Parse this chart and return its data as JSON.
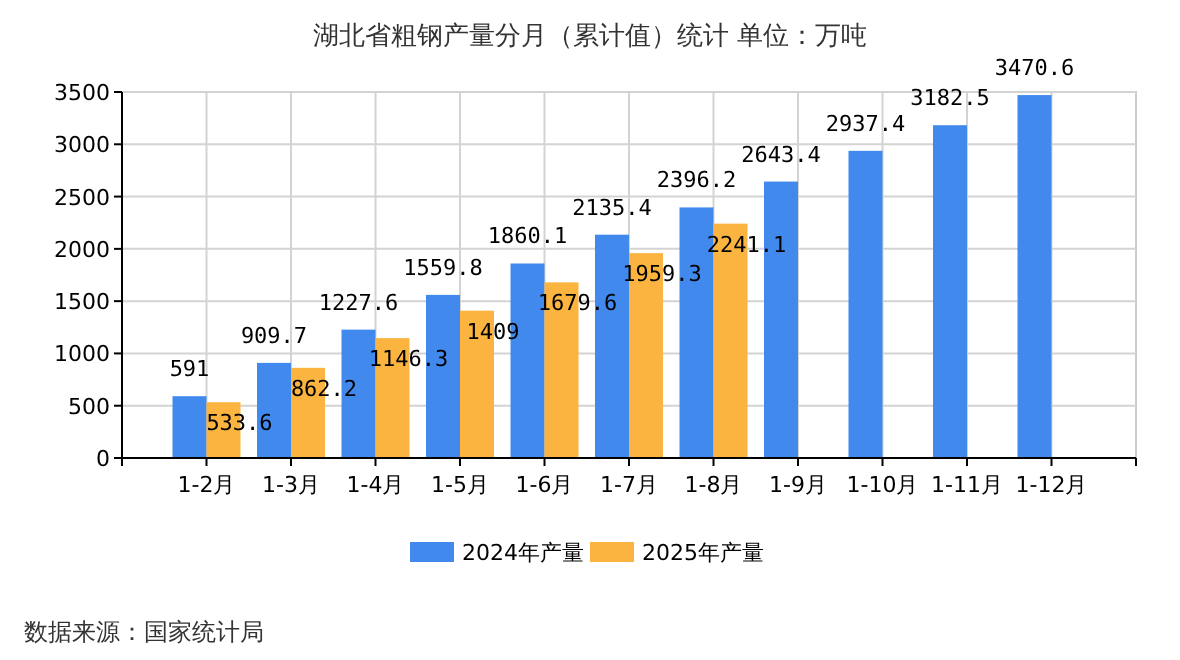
{
  "chart_data": {
    "type": "bar",
    "title": "湖北省粗钢产量分月（累计值）统计  单位：万吨",
    "categories": [
      "1-2月",
      "1-3月",
      "1-4月",
      "1-5月",
      "1-6月",
      "1-7月",
      "1-8月",
      "1-9月",
      "1-10月",
      "1-11月",
      "1-12月"
    ],
    "series": [
      {
        "name": "2024年产量",
        "color": "#4189ed",
        "values": [
          591,
          909.7,
          1227.6,
          1559.8,
          1860.1,
          2135.4,
          2396.2,
          2643.4,
          2937.4,
          3182.5,
          3470.6
        ]
      },
      {
        "name": "2025年产量",
        "color": "#fbb440",
        "values": [
          533.6,
          862.2,
          1146.3,
          1409,
          1679.6,
          1959.3,
          2241.1,
          null,
          null,
          null,
          null
        ]
      }
    ],
    "ylim": [
      0,
      3500
    ],
    "yticks": [
      0,
      500,
      1000,
      1500,
      2000,
      2500,
      3000,
      3500
    ],
    "grid": true,
    "legend": "bottom",
    "data_labels": true,
    "annotations": [
      "数据来源：国家统计局"
    ]
  }
}
